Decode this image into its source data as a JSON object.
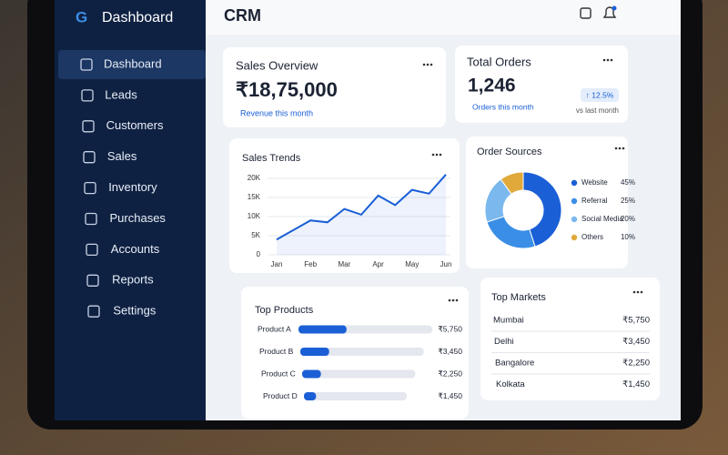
{
  "sidebar": {
    "logo": "G",
    "title": "Dashboard",
    "items": [
      "Dashboard",
      "Leads",
      "Customers",
      "Sales",
      "Inventory",
      "Purchases",
      "Accounts",
      "Reports",
      "Settings"
    ]
  },
  "header": {
    "title": "CRM"
  },
  "sales_overview": {
    "title": "Sales Overview",
    "value": "₹18,75,000",
    "caption": "Revenue this month"
  },
  "total_orders": {
    "title": "Total Orders",
    "value": "1,246",
    "caption": "Orders this month",
    "change": "↑ 12.5%",
    "change_caption": "vs last month"
  },
  "top_markets": {
    "title": "Top Markets",
    "rows": [
      [
        "Mumbai",
        "₹5,750"
      ],
      [
        "Delhi",
        "₹3,450"
      ],
      [
        "Bangalore",
        "₹2,250"
      ],
      [
        "Kolkata",
        "₹1,450"
      ]
    ]
  },
  "chart_data": [
    {
      "type": "line",
      "title": "Sales Trends",
      "color": "#1a5fd6",
      "categories": [
        "Jan",
        null,
        "Feb",
        null,
        "Mar",
        null,
        "Apr",
        null,
        "May",
        null,
        "Jun"
      ],
      "values": [
        4000,
        6500,
        9000,
        8500,
        12000,
        10500,
        15500,
        13000,
        17000,
        16000,
        21000
      ],
      "ylim": [
        0,
        22000
      ],
      "yticks": [
        {
          "value": 0,
          "label": "0"
        },
        {
          "value": 5000,
          "label": "5K"
        },
        {
          "value": 10000,
          "label": "10K"
        },
        {
          "value": 15000,
          "label": "15K"
        },
        {
          "value": 20000,
          "label": "20K"
        }
      ],
      "grid": true
    },
    {
      "type": "pie",
      "title": "Order Sources",
      "categories": [
        "Website",
        "Referral",
        "Social Media",
        "Others"
      ],
      "values": [
        45,
        25,
        20,
        10
      ],
      "value_labels": [
        "45%",
        "25%",
        "20%",
        "10%"
      ],
      "colors": [
        "#1a5fd6",
        "#3a8ee6",
        "#7ab8ee",
        "#e0a93a"
      ]
    },
    {
      "type": "hbar",
      "title": "Top Products",
      "color": "#1a5fd6",
      "categories": [
        "Product A",
        "Product B",
        "Product C",
        "Product D"
      ],
      "values": [
        5750,
        3450,
        2250,
        1450
      ],
      "value_labels": [
        "₹5,750",
        "₹3,450",
        "₹2,250",
        "₹1,450"
      ],
      "xlim": [
        0,
        16000
      ]
    }
  ]
}
